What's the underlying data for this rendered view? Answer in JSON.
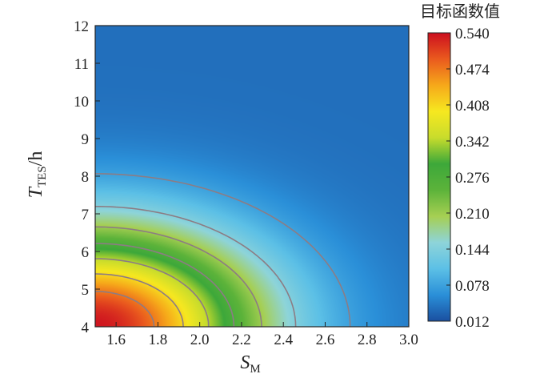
{
  "chart_data": {
    "type": "heatmap",
    "title": "",
    "xlabel": {
      "main": "S",
      "sub": "M"
    },
    "ylabel": {
      "main": "T",
      "sub": "TES",
      "suffix": "/h"
    },
    "xlim": [
      1.5,
      3.0
    ],
    "ylim": [
      4,
      12
    ],
    "x_ticks": [
      "1.6",
      "1.8",
      "2.0",
      "2.2",
      "2.4",
      "2.6",
      "2.8",
      "3.0"
    ],
    "y_ticks": [
      "4",
      "5",
      "6",
      "7",
      "8",
      "9",
      "10",
      "11",
      "12"
    ],
    "colorbar": {
      "title": "目标函数值",
      "min": 0.012,
      "max": 0.54,
      "ticks": [
        "0.540",
        "0.474",
        "0.408",
        "0.342",
        "0.276",
        "0.210",
        "0.144",
        "0.078",
        "0.012"
      ],
      "colormap": [
        "#1a4fa0",
        "#2a8fd8",
        "#5cc0e6",
        "#8ed4d9",
        "#a6cf52",
        "#5cb33a",
        "#3da83a",
        "#c8dc2c",
        "#f6e820",
        "#f6a81a",
        "#ea5a1e",
        "#cc0f1f"
      ]
    },
    "contour_levels": [
      0.474,
      0.408,
      0.342,
      0.276,
      0.21,
      0.144,
      0.078
    ],
    "grid": false,
    "contour_color": "#8c7c84"
  }
}
